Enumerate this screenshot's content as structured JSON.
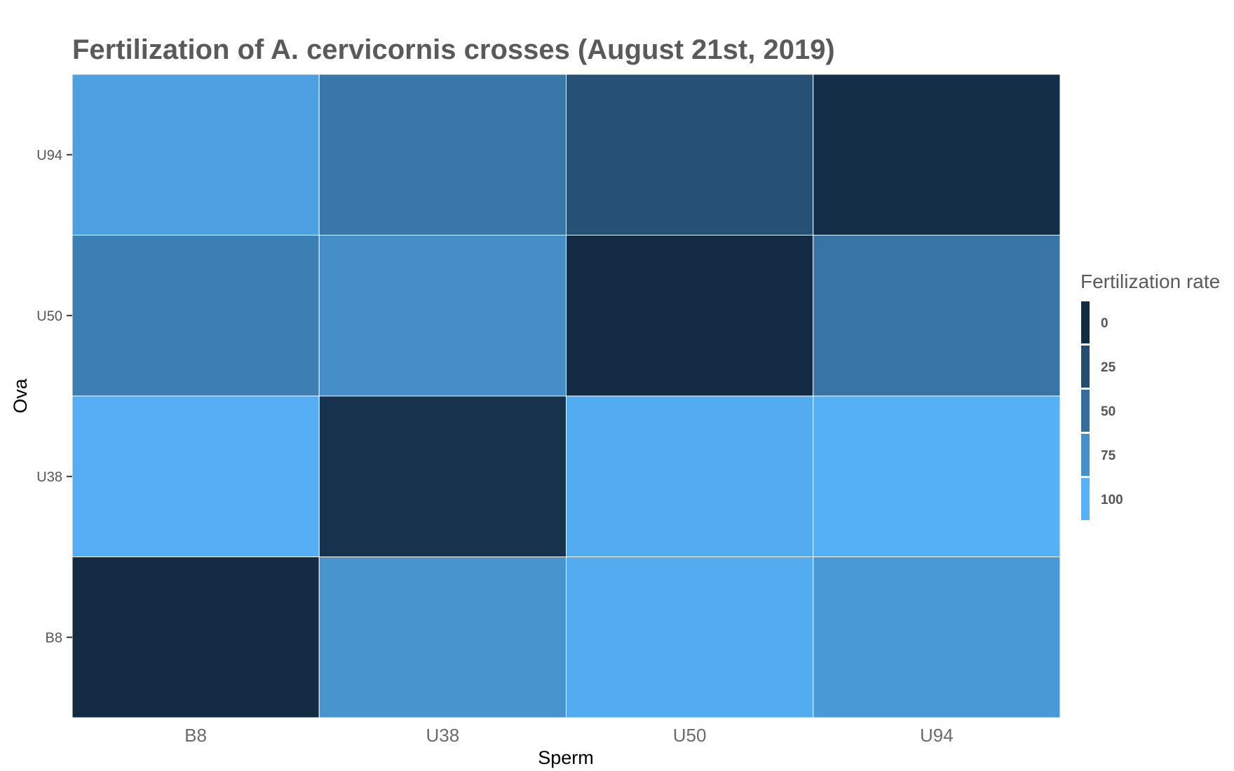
{
  "chart_data": {
    "type": "heatmap",
    "title": "Fertilization of A. cervicornis crosses (August 21st, 2019)",
    "xlabel": "Sperm",
    "ylabel": "Ova",
    "x_categories": [
      "B8",
      "U38",
      "U50",
      "U94"
    ],
    "y_categories": [
      "B8",
      "U38",
      "U50",
      "U94"
    ],
    "values": [
      [
        0,
        78,
        96,
        82
      ],
      [
        98,
        5,
        96,
        99
      ],
      [
        62,
        74,
        0,
        55
      ],
      [
        88,
        57,
        28,
        2
      ]
    ],
    "legend": {
      "title": "Fertilization rate",
      "ticks": [
        0,
        25,
        50,
        75,
        100
      ],
      "placement": "right"
    },
    "grid": false,
    "color_scale": {
      "low": "#132b43",
      "high": "#56b1f7"
    }
  }
}
